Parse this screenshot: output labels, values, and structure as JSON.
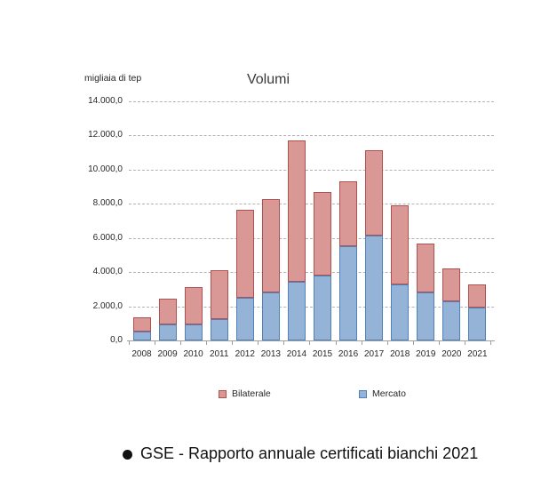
{
  "chart_data": {
    "type": "bar",
    "stacked": true,
    "title": "Volumi",
    "unit_label": "migliaia di tep",
    "xlabel": "",
    "ylabel": "migliaia di tep",
    "categories": [
      "2008",
      "2009",
      "2010",
      "2011",
      "2012",
      "2013",
      "2014",
      "2015",
      "2016",
      "2017",
      "2018",
      "2019",
      "2020",
      "2021"
    ],
    "series": [
      {
        "name": "Mercato",
        "color": "#95b3d7",
        "border": "#4f81bd",
        "values": [
          500,
          950,
          950,
          1250,
          2500,
          2800,
          3450,
          3800,
          5500,
          6150,
          3300,
          2800,
          2300,
          1900
        ]
      },
      {
        "name": "Bilaterale",
        "color": "#d99795",
        "border": "#b0504d",
        "values": [
          850,
          1500,
          2150,
          2850,
          5150,
          5500,
          8250,
          4900,
          3800,
          5000,
          4600,
          2850,
          1900,
          1400
        ]
      }
    ],
    "totals": [
      1350,
      2450,
      3100,
      4100,
      7650,
      8300,
      11700,
      8700,
      9300,
      11150,
      7900,
      5650,
      4200,
      3300
    ],
    "ylim": [
      0,
      14000
    ],
    "ytick_values": [
      0,
      2000,
      4000,
      6000,
      8000,
      10000,
      12000,
      14000
    ],
    "ytick_labels": [
      "0,0",
      "2.000,0",
      "4.000,0",
      "6.000,0",
      "8.000,0",
      "10.000,0",
      "12.000,0",
      "14.000,0"
    ],
    "grid": "horizontal-dashed",
    "legend_position": "bottom"
  },
  "legend": {
    "items": [
      {
        "label": "Bilaterale",
        "color": "#d99795",
        "border": "#b0504d"
      },
      {
        "label": "Mercato",
        "color": "#95b3d7",
        "border": "#4f81bd"
      }
    ]
  },
  "footer": {
    "bullet": "",
    "text": "GSE - Rapporto annuale certificati bianchi 2021"
  }
}
